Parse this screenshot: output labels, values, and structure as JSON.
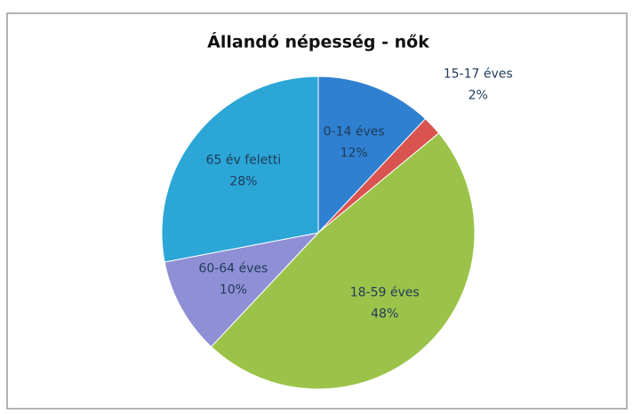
{
  "chart_data": {
    "type": "pie",
    "title": "Állandó népesség - nők",
    "categories": [
      "0-14 éves",
      "15-17 éves",
      "18-59 éves",
      "60-64 éves",
      "65 év feletti"
    ],
    "values": [
      12,
      2,
      48,
      10,
      28
    ],
    "value_labels": [
      "12%",
      "2%",
      "48%",
      "10%",
      "28%"
    ],
    "colors": [
      "#2f80d0",
      "#d9534f",
      "#9bc34a",
      "#8f8fd6",
      "#2ba6d6"
    ]
  }
}
